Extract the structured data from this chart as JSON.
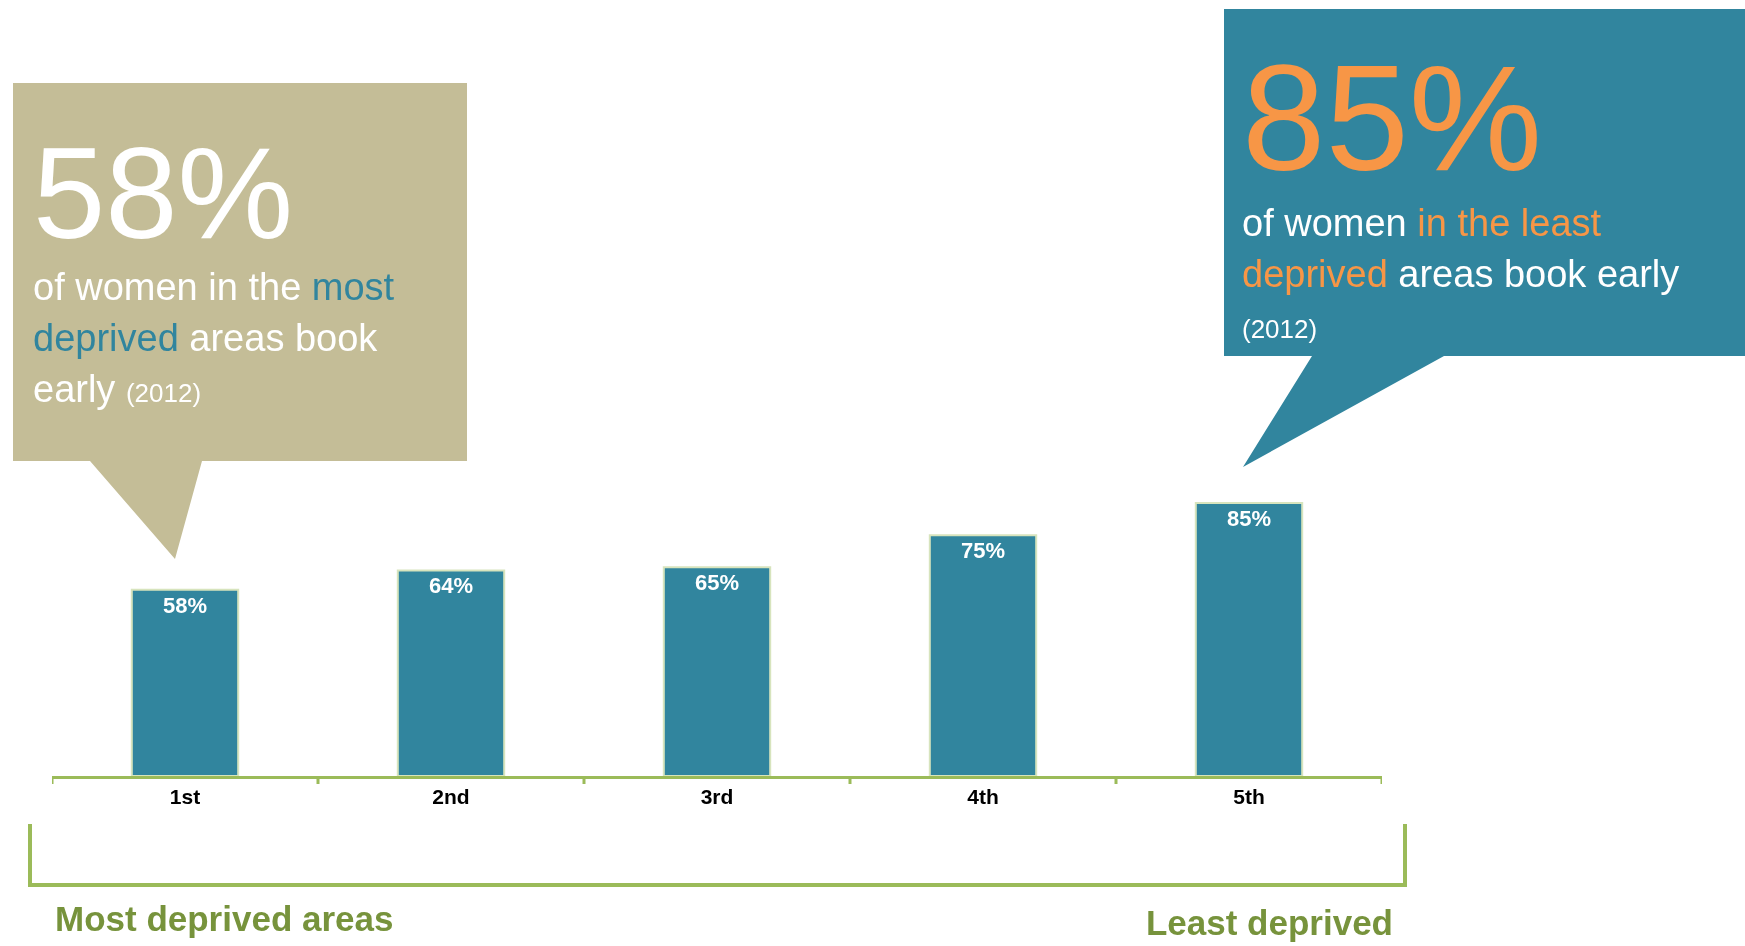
{
  "chart_data": {
    "type": "bar",
    "categories": [
      "1st",
      "2nd",
      "3rd",
      "4th",
      "5th"
    ],
    "values": [
      58,
      64,
      65,
      75,
      85
    ],
    "value_labels": [
      "58%",
      "64%",
      "65%",
      "75%",
      "85%"
    ],
    "color": "#31859e",
    "annotations": [
      "58%",
      "of women in the",
      "most deprived",
      "areas book early",
      "(2012)",
      "85%",
      "of women",
      "in the least deprived",
      "areas book early",
      "(2012)",
      "Most deprived areas",
      "Least deprived"
    ]
  }
}
